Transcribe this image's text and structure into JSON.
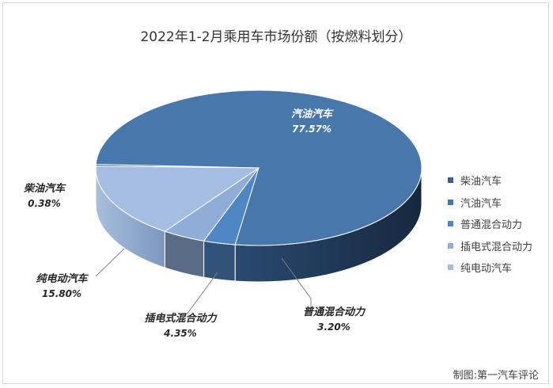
{
  "chart_data": {
    "type": "pie",
    "title": "2022年1-2月乘用车市场份额（按燃料划分）",
    "categories": [
      "柴油汽车",
      "汽油汽车",
      "普通混合动力",
      "插电式混合动力",
      "纯电动汽车"
    ],
    "values": [
      0.38,
      77.57,
      3.2,
      4.35,
      15.8
    ],
    "value_labels": [
      "0.38%",
      "77.57%",
      "3.20%",
      "4.35%",
      "15.80%"
    ],
    "colors": [
      "#3a5f8c",
      "#4878ab",
      "#4f86c4",
      "#8fadd6",
      "#a5bde1"
    ],
    "legend_position": "right",
    "three_d": true
  },
  "credit": "制图:第一汽车评论"
}
